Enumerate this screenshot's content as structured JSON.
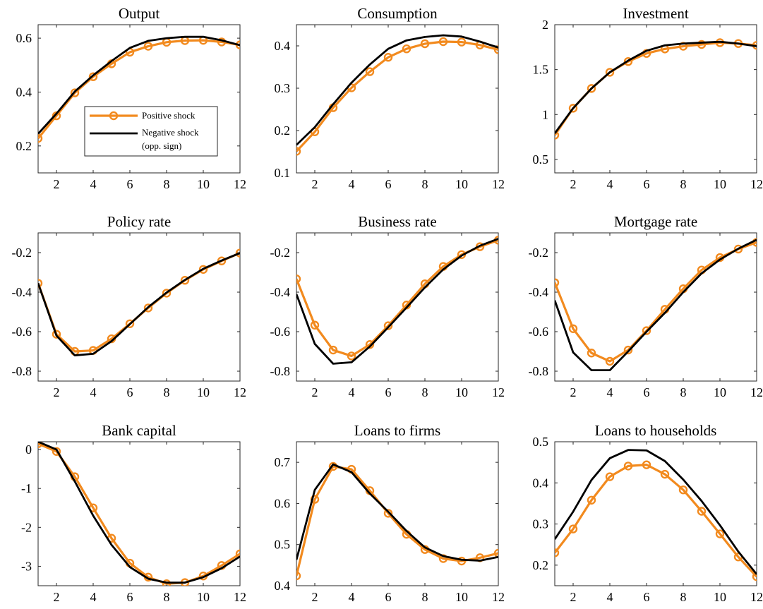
{
  "colors": {
    "positive": "#f28a1e",
    "negative": "#000000"
  },
  "legend": {
    "items": [
      {
        "label": "Positive shock",
        "series": "positive"
      },
      {
        "label": "Negative shock",
        "label2": "(opp. sign)",
        "series": "negative"
      }
    ]
  },
  "chart_data": [
    {
      "type": "line",
      "title": "Output",
      "xlim": [
        1,
        12
      ],
      "ylim": [
        0.1,
        0.65
      ],
      "xticks": [
        2,
        4,
        6,
        8,
        10,
        12
      ],
      "yticks": [
        0.2,
        0.4,
        0.6
      ],
      "yticklabels": [
        "0.2",
        "0.4",
        "0.6"
      ],
      "x": [
        1,
        2,
        3,
        4,
        5,
        6,
        7,
        8,
        9,
        10,
        11,
        12
      ],
      "series": [
        {
          "name": "Positive shock",
          "values": [
            0.228,
            0.312,
            0.397,
            0.457,
            0.505,
            0.548,
            0.57,
            0.585,
            0.591,
            0.592,
            0.586,
            0.575
          ]
        },
        {
          "name": "Negative shock (opp. sign)",
          "values": [
            0.245,
            0.32,
            0.402,
            0.462,
            0.515,
            0.564,
            0.59,
            0.6,
            0.605,
            0.605,
            0.592,
            0.574
          ]
        }
      ]
    },
    {
      "type": "line",
      "title": "Consumption",
      "xlim": [
        1,
        12
      ],
      "ylim": [
        0.1,
        0.45
      ],
      "xticks": [
        2,
        4,
        6,
        8,
        10,
        12
      ],
      "yticks": [
        0.1,
        0.2,
        0.3,
        0.4
      ],
      "yticklabels": [
        "0.1",
        "0.2",
        "0.3",
        "0.4"
      ],
      "x": [
        1,
        2,
        3,
        4,
        5,
        6,
        7,
        8,
        9,
        10,
        11,
        12
      ],
      "series": [
        {
          "name": "Positive shock",
          "values": [
            0.151,
            0.197,
            0.254,
            0.301,
            0.339,
            0.373,
            0.393,
            0.405,
            0.41,
            0.409,
            0.402,
            0.391
          ]
        },
        {
          "name": "Negative shock (opp. sign)",
          "values": [
            0.166,
            0.208,
            0.262,
            0.313,
            0.356,
            0.393,
            0.413,
            0.421,
            0.425,
            0.422,
            0.41,
            0.396
          ]
        }
      ]
    },
    {
      "type": "line",
      "title": "Investment",
      "xlim": [
        1,
        12
      ],
      "ylim": [
        0.35,
        2.0
      ],
      "xticks": [
        2,
        4,
        6,
        8,
        10,
        12
      ],
      "yticks": [
        0.5,
        1.0,
        1.5,
        2.0
      ],
      "yticklabels": [
        "0.5",
        "1",
        "1.5",
        "2"
      ],
      "x": [
        1,
        2,
        3,
        4,
        5,
        6,
        7,
        8,
        9,
        10,
        11,
        12
      ],
      "series": [
        {
          "name": "Positive shock",
          "values": [
            0.77,
            1.07,
            1.29,
            1.47,
            1.59,
            1.68,
            1.73,
            1.76,
            1.78,
            1.8,
            1.79,
            1.77
          ]
        },
        {
          "name": "Negative shock (opp. sign)",
          "values": [
            0.79,
            1.07,
            1.29,
            1.47,
            1.6,
            1.71,
            1.77,
            1.79,
            1.8,
            1.81,
            1.79,
            1.76
          ]
        }
      ]
    },
    {
      "type": "line",
      "title": "Policy rate",
      "xlim": [
        1,
        12
      ],
      "ylim": [
        -0.85,
        -0.1
      ],
      "xticks": [
        2,
        4,
        6,
        8,
        10,
        12
      ],
      "yticks": [
        -0.8,
        -0.6,
        -0.4,
        -0.2
      ],
      "yticklabels": [
        "-0.8",
        "-0.6",
        "-0.4",
        "-0.2"
      ],
      "x": [
        1,
        2,
        3,
        4,
        5,
        6,
        7,
        8,
        9,
        10,
        11,
        12
      ],
      "series": [
        {
          "name": "Positive shock",
          "values": [
            -0.355,
            -0.613,
            -0.7,
            -0.695,
            -0.636,
            -0.56,
            -0.48,
            -0.405,
            -0.34,
            -0.285,
            -0.242,
            -0.202
          ]
        },
        {
          "name": "Negative shock (opp. sign)",
          "values": [
            -0.355,
            -0.62,
            -0.72,
            -0.712,
            -0.648,
            -0.562,
            -0.476,
            -0.402,
            -0.338,
            -0.282,
            -0.24,
            -0.202
          ]
        }
      ]
    },
    {
      "type": "line",
      "title": "Business rate",
      "xlim": [
        1,
        12
      ],
      "ylim": [
        -0.85,
        -0.1
      ],
      "xticks": [
        2,
        4,
        6,
        8,
        10,
        12
      ],
      "yticks": [
        -0.8,
        -0.6,
        -0.4,
        -0.2
      ],
      "yticklabels": [
        "-0.8",
        "-0.6",
        "-0.4",
        "-0.2"
      ],
      "x": [
        1,
        2,
        3,
        4,
        5,
        6,
        7,
        8,
        9,
        10,
        11,
        12
      ],
      "series": [
        {
          "name": "Positive shock",
          "values": [
            -0.333,
            -0.567,
            -0.693,
            -0.723,
            -0.665,
            -0.57,
            -0.465,
            -0.358,
            -0.27,
            -0.21,
            -0.17,
            -0.137
          ]
        },
        {
          "name": "Negative shock (opp. sign)",
          "values": [
            -0.41,
            -0.662,
            -0.762,
            -0.755,
            -0.675,
            -0.578,
            -0.478,
            -0.376,
            -0.285,
            -0.215,
            -0.165,
            -0.13
          ]
        }
      ]
    },
    {
      "type": "line",
      "title": "Mortgage rate",
      "xlim": [
        1,
        12
      ],
      "ylim": [
        -0.85,
        -0.1
      ],
      "xticks": [
        2,
        4,
        6,
        8,
        10,
        12
      ],
      "yticks": [
        -0.8,
        -0.6,
        -0.4,
        -0.2
      ],
      "yticklabels": [
        "-0.8",
        "-0.6",
        "-0.4",
        "-0.2"
      ],
      "x": [
        1,
        2,
        3,
        4,
        5,
        6,
        7,
        8,
        9,
        10,
        11,
        12
      ],
      "series": [
        {
          "name": "Positive shock",
          "values": [
            -0.352,
            -0.585,
            -0.708,
            -0.75,
            -0.693,
            -0.595,
            -0.487,
            -0.383,
            -0.288,
            -0.225,
            -0.182,
            -0.148
          ]
        },
        {
          "name": "Negative shock (opp. sign)",
          "values": [
            -0.442,
            -0.705,
            -0.795,
            -0.795,
            -0.7,
            -0.6,
            -0.505,
            -0.4,
            -0.305,
            -0.235,
            -0.18,
            -0.135
          ]
        }
      ]
    },
    {
      "type": "line",
      "title": "Bank capital",
      "xlim": [
        1,
        12
      ],
      "ylim": [
        -3.5,
        0.2
      ],
      "xticks": [
        2,
        4,
        6,
        8,
        10,
        12
      ],
      "yticks": [
        -3,
        -2,
        -1,
        0
      ],
      "yticklabels": [
        "-3",
        "-2",
        "-1",
        "0"
      ],
      "x": [
        1,
        2,
        3,
        4,
        5,
        6,
        7,
        8,
        9,
        10,
        11,
        12
      ],
      "series": [
        {
          "name": "Positive shock",
          "values": [
            0.15,
            -0.05,
            -0.7,
            -1.5,
            -2.28,
            -2.92,
            -3.28,
            -3.45,
            -3.42,
            -3.25,
            -2.98,
            -2.68
          ]
        },
        {
          "name": "Negative shock (opp. sign)",
          "values": [
            0.2,
            0.0,
            -0.82,
            -1.7,
            -2.45,
            -3.02,
            -3.32,
            -3.42,
            -3.42,
            -3.28,
            -3.05,
            -2.75
          ]
        }
      ]
    },
    {
      "type": "line",
      "title": "Loans to firms",
      "xlim": [
        1,
        12
      ],
      "ylim": [
        0.4,
        0.75
      ],
      "xticks": [
        2,
        4,
        6,
        8,
        10,
        12
      ],
      "yticks": [
        0.4,
        0.5,
        0.6,
        0.7
      ],
      "yticklabels": [
        "0.4",
        "0.5",
        "0.6",
        "0.7"
      ],
      "x": [
        1,
        2,
        3,
        4,
        5,
        6,
        7,
        8,
        9,
        10,
        11,
        12
      ],
      "series": [
        {
          "name": "Positive shock",
          "values": [
            0.424,
            0.61,
            0.69,
            0.683,
            0.631,
            0.576,
            0.525,
            0.488,
            0.466,
            0.46,
            0.468,
            0.479
          ]
        },
        {
          "name": "Negative shock (opp. sign)",
          "values": [
            0.463,
            0.633,
            0.695,
            0.676,
            0.624,
            0.58,
            0.533,
            0.493,
            0.472,
            0.463,
            0.461,
            0.47
          ]
        }
      ]
    },
    {
      "type": "line",
      "title": "Loans to households",
      "xlim": [
        1,
        12
      ],
      "ylim": [
        0.15,
        0.5
      ],
      "xticks": [
        2,
        4,
        6,
        8,
        10,
        12
      ],
      "yticks": [
        0.2,
        0.3,
        0.4,
        0.5
      ],
      "yticklabels": [
        "0.2",
        "0.3",
        "0.4",
        "0.5"
      ],
      "x": [
        1,
        2,
        3,
        4,
        5,
        6,
        7,
        8,
        9,
        10,
        11,
        12
      ],
      "series": [
        {
          "name": "Positive shock",
          "values": [
            0.23,
            0.288,
            0.358,
            0.415,
            0.441,
            0.444,
            0.421,
            0.383,
            0.331,
            0.276,
            0.22,
            0.172
          ]
        },
        {
          "name": "Negative shock (opp. sign)",
          "values": [
            0.263,
            0.33,
            0.407,
            0.46,
            0.48,
            0.479,
            0.453,
            0.408,
            0.356,
            0.297,
            0.233,
            0.178
          ]
        }
      ]
    }
  ]
}
